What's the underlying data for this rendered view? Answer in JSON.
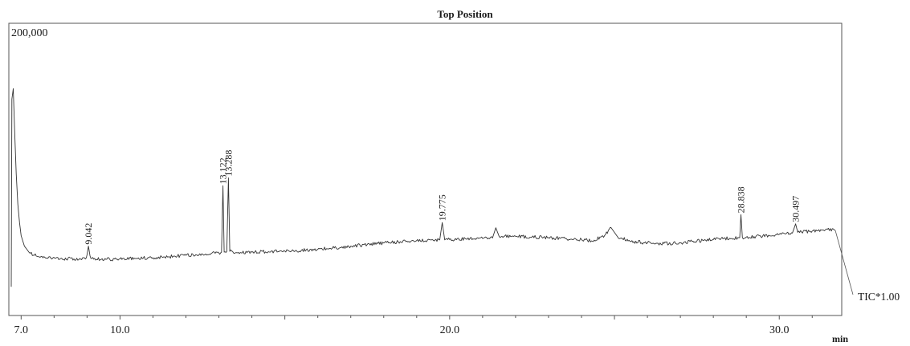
{
  "chart_data": {
    "type": "line",
    "title": "Top Position",
    "ymax_label": "200,000",
    "trace_label": "TIC*1.00",
    "xlabel": "min",
    "xlim": [
      6.7,
      31.7
    ],
    "ylim": [
      0,
      200000
    ],
    "x_ticks": [
      7.0,
      10.0,
      20.0,
      30.0
    ],
    "x_tick_labels": [
      "7.0",
      "10.0",
      "20.0",
      "30.0"
    ],
    "x_minor_tick_step": 1.0,
    "grid": false,
    "series": [
      {
        "name": "",
        "color": "#333333",
        "points": [
          [
            6.7,
            9000
          ],
          [
            6.72,
            152000
          ],
          [
            6.76,
            160000
          ],
          [
            6.8,
            130000
          ],
          [
            6.85,
            95000
          ],
          [
            6.9,
            72000
          ],
          [
            6.95,
            58000
          ],
          [
            7.0,
            48000
          ],
          [
            7.1,
            40000
          ],
          [
            7.25,
            35000
          ],
          [
            7.4,
            33000
          ],
          [
            7.6,
            32000
          ],
          [
            7.9,
            31000
          ],
          [
            8.2,
            30600
          ],
          [
            8.6,
            30300
          ],
          [
            8.95,
            30200
          ],
          [
            9.0,
            33500
          ],
          [
            9.042,
            40000
          ],
          [
            9.09,
            32500
          ],
          [
            9.2,
            30100
          ],
          [
            9.6,
            30000
          ],
          [
            10.0,
            30200
          ],
          [
            10.5,
            30600
          ],
          [
            11.0,
            31200
          ],
          [
            11.5,
            32000
          ],
          [
            12.0,
            33000
          ],
          [
            12.3,
            33500
          ],
          [
            12.6,
            34000
          ],
          [
            13.0,
            34800
          ],
          [
            13.08,
            35500
          ],
          [
            13.122,
            86000
          ],
          [
            13.16,
            35500
          ],
          [
            13.24,
            36000
          ],
          [
            13.288,
            92000
          ],
          [
            13.33,
            36000
          ],
          [
            13.5,
            35000
          ],
          [
            14.0,
            35400
          ],
          [
            14.5,
            35800
          ],
          [
            15.0,
            36200
          ],
          [
            15.5,
            36800
          ],
          [
            16.0,
            37600
          ],
          [
            16.5,
            38600
          ],
          [
            17.0,
            40000
          ],
          [
            17.5,
            41200
          ],
          [
            18.0,
            42400
          ],
          [
            18.5,
            43400
          ],
          [
            19.0,
            44200
          ],
          [
            19.5,
            44600
          ],
          [
            19.7,
            44800
          ],
          [
            19.775,
            58000
          ],
          [
            19.85,
            44800
          ],
          [
            20.0,
            45000
          ],
          [
            20.5,
            45400
          ],
          [
            21.0,
            45800
          ],
          [
            21.3,
            46200
          ],
          [
            21.4,
            54000
          ],
          [
            21.5,
            47500
          ],
          [
            22.0,
            47500
          ],
          [
            22.5,
            47000
          ],
          [
            23.0,
            46500
          ],
          [
            23.5,
            45800
          ],
          [
            24.0,
            45000
          ],
          [
            24.3,
            44000
          ],
          [
            24.7,
            48000
          ],
          [
            24.9,
            54000
          ],
          [
            25.1,
            47000
          ],
          [
            25.5,
            43500
          ],
          [
            26.0,
            42500
          ],
          [
            26.5,
            42000
          ],
          [
            27.0,
            42500
          ],
          [
            27.5,
            43800
          ],
          [
            28.0,
            45000
          ],
          [
            28.5,
            46000
          ],
          [
            28.8,
            46400
          ],
          [
            28.838,
            64000
          ],
          [
            28.88,
            46600
          ],
          [
            29.5,
            47800
          ],
          [
            30.0,
            49000
          ],
          [
            30.4,
            50000
          ],
          [
            30.497,
            57000
          ],
          [
            30.56,
            50500
          ],
          [
            31.0,
            51500
          ],
          [
            31.4,
            52500
          ],
          [
            31.7,
            52000
          ]
        ]
      }
    ],
    "peak_labels": [
      {
        "x": 9.042,
        "y": 40000,
        "label": "9.042"
      },
      {
        "x": 13.122,
        "y": 86000,
        "label": "13.122"
      },
      {
        "x": 13.288,
        "y": 92000,
        "label": "13.288"
      },
      {
        "x": 19.775,
        "y": 58000,
        "label": "19.775"
      },
      {
        "x": 28.838,
        "y": 64000,
        "label": "28.838"
      },
      {
        "x": 30.497,
        "y": 57000,
        "label": "30.497"
      }
    ]
  }
}
